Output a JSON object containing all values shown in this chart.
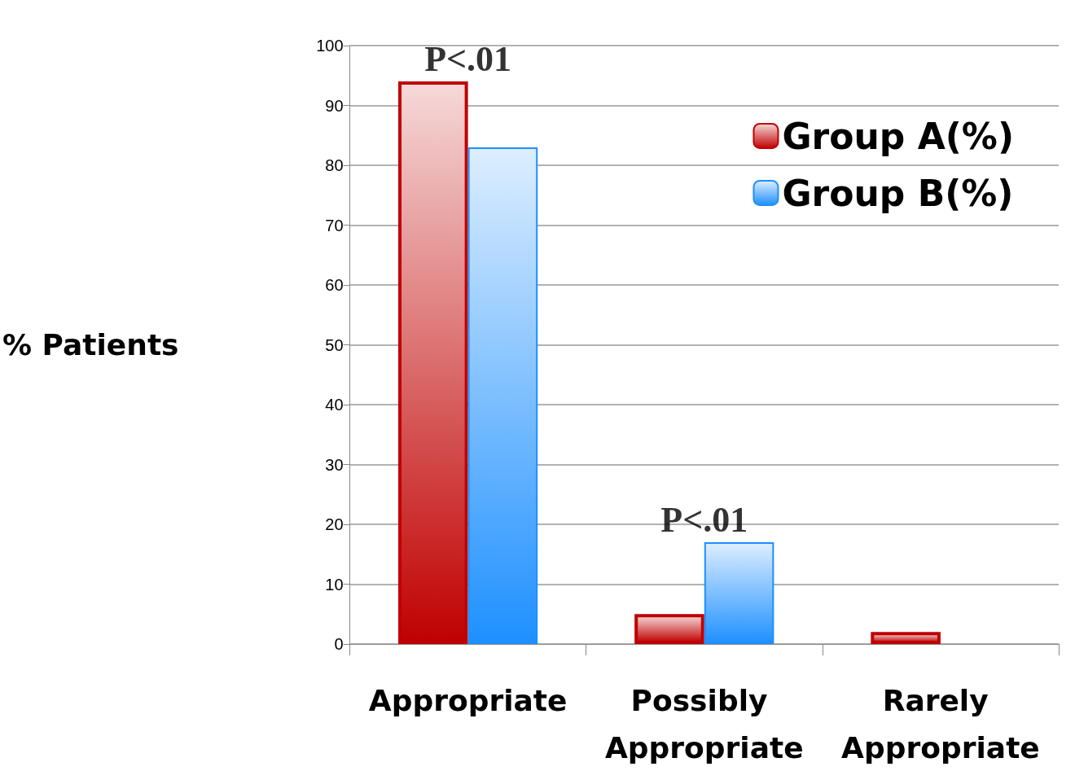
{
  "chart_data": {
    "type": "bar",
    "ylabel": "% Patients",
    "categories": [
      "Appropriate",
      "Possibly Appropriate",
      "Rarely Appropriate"
    ],
    "series": [
      {
        "name": "Group A(%)",
        "color": "#c00000",
        "values": [
          94,
          5,
          2
        ]
      },
      {
        "name": "Group B(%)",
        "color": "#1e90ff",
        "values": [
          83,
          17,
          0
        ]
      }
    ],
    "ylim": [
      0,
      100
    ],
    "yticks": [
      0,
      10,
      20,
      30,
      40,
      50,
      60,
      70,
      80,
      90,
      100
    ],
    "grid": "y",
    "legend": "top right",
    "annotations": [
      "P<.01",
      "P<.01"
    ]
  }
}
